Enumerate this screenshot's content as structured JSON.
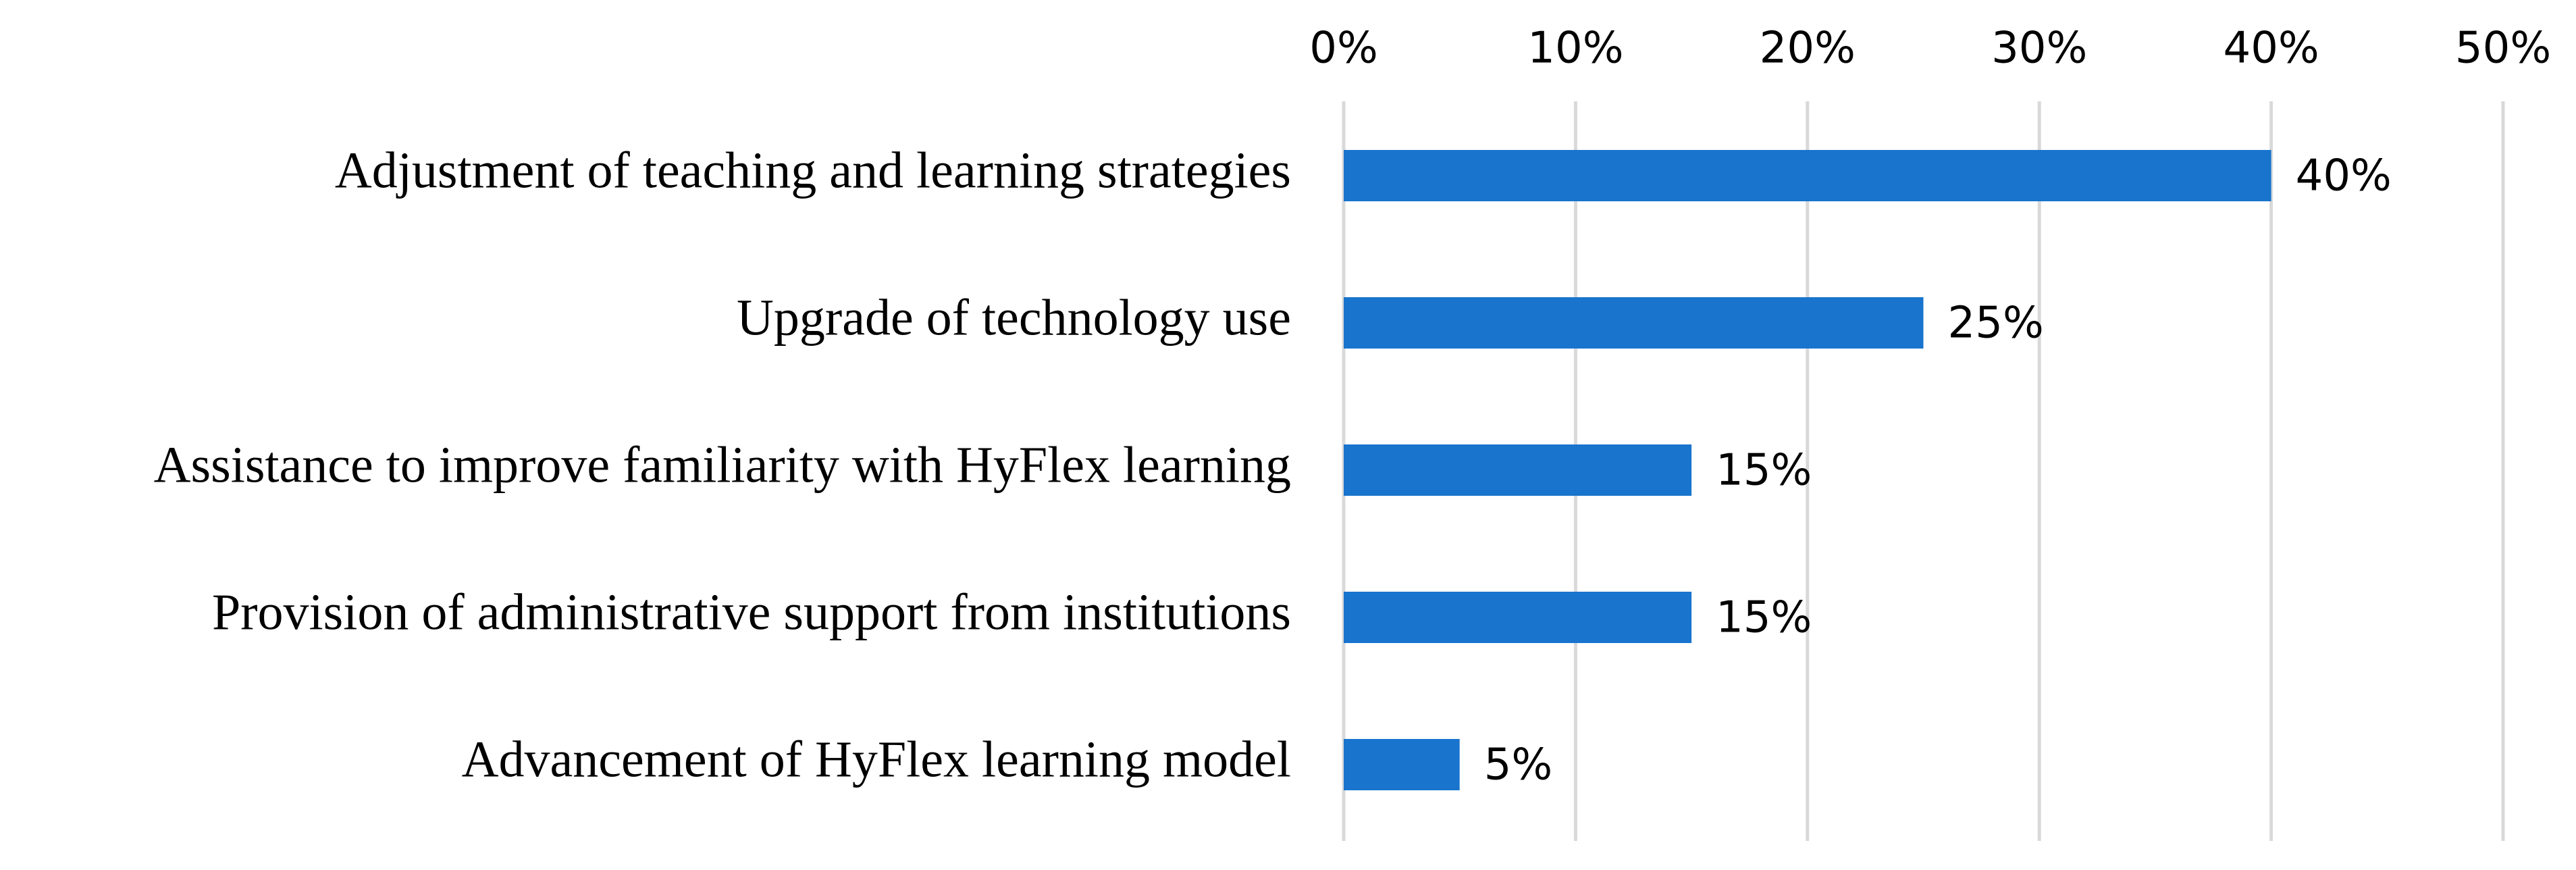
{
  "chart_data": {
    "type": "bar",
    "orientation": "horizontal",
    "categories": [
      "Adjustment of teaching and learning strategies",
      "Upgrade of technology use",
      "Assistance to improve familiarity with HyFlex learning",
      "Provision of administrative support from institutions",
      "Advancement of HyFlex learning model"
    ],
    "values": [
      40,
      25,
      15,
      15,
      5
    ],
    "value_labels": [
      "40%",
      "25%",
      "15%",
      "15%",
      "5%"
    ],
    "x_ticks": [
      0,
      10,
      20,
      30,
      40,
      50
    ],
    "x_tick_labels": [
      "0%",
      "10%",
      "20%",
      "30%",
      "40%",
      "50%"
    ],
    "xlim": [
      0,
      50
    ],
    "x_axis_position": "top",
    "grid": "vertical",
    "title": "",
    "xlabel": "",
    "ylabel": "",
    "legend": "none",
    "colors": {
      "bar": "#1874CD",
      "grid": "#D9D9D9",
      "text": "#000000"
    }
  }
}
